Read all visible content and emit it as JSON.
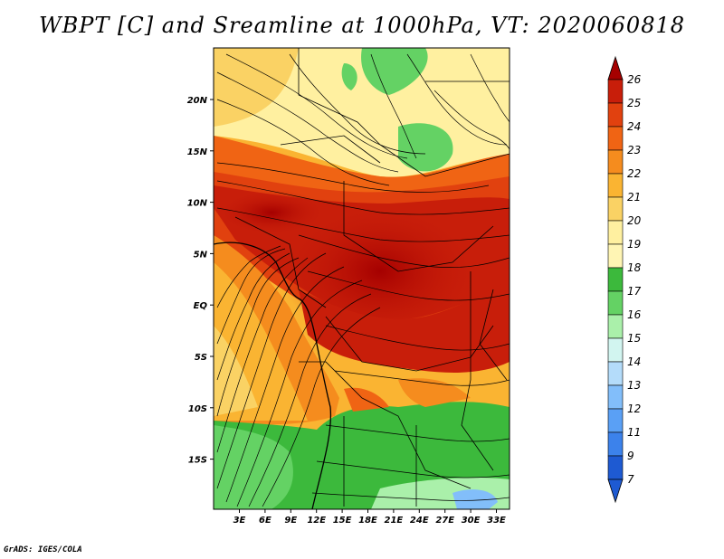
{
  "title": "WBPT [C] and Sreamline at 1000hPa, VT: 2020060818",
  "credit": "GrADS: IGES/COLA",
  "map": {
    "lat_ticks": [
      "20N",
      "15N",
      "10N",
      "5N",
      "EQ",
      "5S",
      "10S",
      "15S"
    ],
    "lon_ticks": [
      "3E",
      "6E",
      "9E",
      "12E",
      "15E",
      "18E",
      "21E",
      "24E",
      "27E",
      "30E",
      "33E"
    ]
  },
  "colorbar": {
    "labels": [
      "26",
      "25",
      "24",
      "23",
      "22",
      "21",
      "20",
      "19",
      "18",
      "17",
      "16",
      "15",
      "14",
      "13",
      "12",
      "11",
      "9",
      "7"
    ],
    "colors": [
      "#a50000",
      "#c81e0a",
      "#e1410f",
      "#f06414",
      "#f58c1e",
      "#fab432",
      "#fad264",
      "#fff0a0",
      "#fff5b4",
      "#3cb93c",
      "#64d264",
      "#aaf0aa",
      "#d2f5f0",
      "#b4dcfa",
      "#82befa",
      "#5aa0f5",
      "#3c82eb",
      "#1e5ad2"
    ]
  }
}
